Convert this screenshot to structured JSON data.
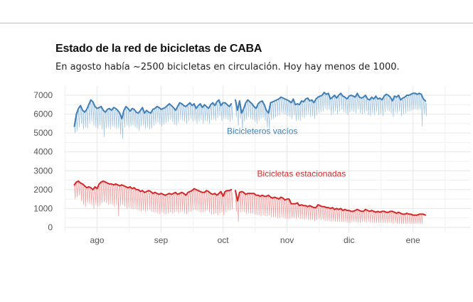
{
  "header": {
    "title": "Estado de la red de bicicletas de CABA",
    "subtitle": "En agosto había ~2500 bicicletas en circulación. Hoy hay menos de 1000."
  },
  "colors": {
    "empty_docks": "#3f7fb8",
    "empty_docks_light": "#9cc0e0",
    "parked_bikes": "#d62728",
    "parked_bikes_light": "#ee9b9b",
    "grid": "#e6e6e6"
  },
  "chart_data": {
    "type": "line",
    "grid": true,
    "legend": "none",
    "ylim": [
      0,
      7000
    ],
    "yticks": [
      0,
      1000,
      2000,
      3000,
      4000,
      5000,
      6000,
      7000
    ],
    "xlim": [
      "2018-07-16",
      "2019-01-29"
    ],
    "xticks": [
      {
        "date": "2018-08-01",
        "label": "ago"
      },
      {
        "date": "2018-09-01",
        "label": "sep"
      },
      {
        "date": "2018-10-01",
        "label": "oct"
      },
      {
        "date": "2018-11-01",
        "label": "nov"
      },
      {
        "date": "2018-12-01",
        "label": "dic"
      },
      {
        "date": "2019-01-01",
        "label": "ene"
      }
    ],
    "gaps": [
      {
        "start": "2018-10-05",
        "end": "2018-10-07"
      },
      {
        "start": "2018-11-14",
        "end": "2018-11-15"
      }
    ],
    "annotations": [
      {
        "text": "Bicicleteros vacíos",
        "series": "empty_docks",
        "date": "2018-10-20",
        "value": 4950
      },
      {
        "text": "Bicicletas estacionadas",
        "series": "parked_bikes",
        "date": "2018-11-08",
        "value": 2700
      }
    ],
    "series": [
      {
        "key": "empty_docks",
        "date_start": "2018-07-21",
        "daily_max": [
          5350,
          6000,
          6300,
          6450,
          6200,
          6100,
          6250,
          6500,
          6750,
          6650,
          6400,
          6300,
          6350,
          6400,
          6200,
          6100,
          6250,
          6300,
          6200,
          6350,
          6300,
          6200,
          6050,
          5750,
          6200,
          6400,
          6300,
          6150,
          6300,
          6250,
          6100,
          6050,
          6200,
          6350,
          6050,
          6200,
          6100,
          6050,
          6250,
          6300,
          6400,
          6350,
          6250,
          6300,
          6350,
          6450,
          6550,
          6450,
          6350,
          6200,
          6400,
          6600,
          6550,
          6450,
          6400,
          6500,
          6600,
          6450,
          6550,
          6300,
          6450,
          6550,
          6350,
          6500,
          6400,
          6300,
          6500,
          6600,
          6450,
          6650,
          6750,
          6450,
          6600,
          6600,
          6500,
          6400,
          6550,
          6600,
          6750,
          6200,
          6700,
          6050,
          6300,
          6600,
          6750,
          6650,
          6550,
          6400,
          6300,
          6550,
          6650,
          6700,
          6500,
          6200,
          6050,
          6600,
          6650,
          6700,
          6750,
          6800,
          6900,
          6850,
          6800,
          6750,
          6700,
          6600,
          6800,
          6500,
          6550,
          6500,
          6700,
          6650,
          6800,
          6850,
          6700,
          6750,
          6600,
          6800,
          6900,
          6950,
          7000,
          7150,
          7050,
          7100,
          6800,
          6900,
          7000,
          6850,
          7000,
          7100,
          6950,
          6900,
          6800,
          6950,
          7000,
          6950,
          6900,
          7100,
          6900,
          6850,
          6900,
          7000,
          6800,
          6750,
          6900,
          6800,
          6950,
          6800,
          6850,
          6750,
          6950,
          7050,
          7000,
          6900,
          6700,
          6950,
          6900,
          7000,
          6750,
          6850,
          6900,
          7000,
          7000,
          7050,
          7100,
          7100,
          7050,
          7100,
          7050,
          6800,
          6700
        ],
        "daily_min": [
          5000,
          5100,
          5300,
          5500,
          5200,
          5300,
          5250,
          5500,
          5600,
          5400,
          5300,
          5250,
          5400,
          5200,
          4800,
          5250,
          5300,
          5200,
          5350,
          5300,
          5200,
          5250,
          4900,
          4700,
          5300,
          5400,
          5300,
          5350,
          5400,
          5300,
          5250,
          5100,
          5350,
          5400,
          5250,
          5300,
          5200,
          5250,
          5400,
          5500,
          5550,
          5450,
          5350,
          5450,
          5550,
          5600,
          5700,
          5600,
          5450,
          5400,
          5550,
          5700,
          5650,
          5600,
          5500,
          5650,
          5750,
          5600,
          5650,
          5500,
          5600,
          5700,
          5500,
          5650,
          5600,
          5500,
          5700,
          5750,
          5650,
          5800,
          5900,
          5650,
          5750,
          5750,
          5700,
          5600,
          5700,
          5750,
          5850,
          5400,
          5750,
          5200,
          5600,
          5700,
          5850,
          5750,
          5700,
          5600,
          5500,
          5650,
          5750,
          5800,
          5650,
          5300,
          5200,
          5700,
          5750,
          5850,
          5900,
          5950,
          6050,
          6000,
          5950,
          5900,
          5850,
          5750,
          5950,
          5650,
          5700,
          5650,
          5850,
          5800,
          5950,
          6000,
          5850,
          5900,
          5750,
          5950,
          6050,
          6100,
          6150,
          6300,
          6200,
          6250,
          5950,
          6050,
          6150,
          6000,
          6150,
          6250,
          6100,
          6050,
          5950,
          6100,
          6150,
          6100,
          6050,
          6250,
          6050,
          6000,
          6050,
          6150,
          5950,
          5900,
          6050,
          5950,
          6100,
          5950,
          6000,
          5900,
          6100,
          6200,
          6150,
          6050,
          5850,
          6100,
          6050,
          6150,
          5900,
          6000,
          6050,
          6150,
          6150,
          6200,
          6250,
          6250,
          6200,
          6250,
          5350,
          6000,
          5900
        ]
      },
      {
        "key": "parked_bikes",
        "date_start": "2018-07-21",
        "daily_max": [
          2250,
          2400,
          2450,
          2350,
          2300,
          2200,
          2100,
          2150,
          2100,
          2000,
          2150,
          2050,
          2300,
          2400,
          2450,
          2400,
          2350,
          2300,
          2300,
          2250,
          2300,
          2250,
          2200,
          2250,
          2200,
          2150,
          2100,
          2150,
          2050,
          2100,
          2000,
          2000,
          1900,
          1950,
          1850,
          1900,
          1950,
          1900,
          1800,
          1850,
          1800,
          1750,
          1800,
          1750,
          1700,
          1750,
          1800,
          1750,
          1800,
          1850,
          1750,
          1800,
          1850,
          1800,
          1700,
          1850,
          1900,
          1950,
          2050,
          2000,
          1950,
          1900,
          1850,
          1850,
          1950,
          1900,
          1800,
          1750,
          1800,
          1700,
          1800,
          1900,
          1650,
          1900,
          1950,
          1950,
          2000,
          1950,
          1950,
          1400,
          1850,
          1900,
          1850,
          1750,
          1800,
          1800,
          1800,
          1800,
          1700,
          1700,
          1650,
          1700,
          1650,
          1650,
          1700,
          1600,
          1550,
          1600,
          1550,
          1500,
          1600,
          1550,
          1450,
          1500,
          1500,
          1250,
          1250,
          1250,
          1300,
          1150,
          1200,
          1150,
          1150,
          1100,
          1150,
          1100,
          1050,
          1050,
          1200,
          1150,
          1100,
          1100,
          1050,
          1050,
          1000,
          1050,
          950,
          1000,
          950,
          1000,
          900,
          950,
          900,
          900,
          850,
          850,
          900,
          950,
          900,
          850,
          850,
          950,
          900,
          850,
          900,
          850,
          800,
          850,
          800,
          850,
          850,
          800,
          800,
          850,
          850,
          800,
          750,
          800,
          750,
          700,
          700,
          750,
          700,
          700,
          650,
          650,
          650,
          700,
          700,
          700,
          650
        ],
        "daily_min": [
          1500,
          1600,
          1700,
          1400,
          1200,
          1100,
          1300,
          1250,
          1200,
          1000,
          1200,
          1100,
          1150,
          1300,
          1350,
          1300,
          1200,
          1250,
          1200,
          1100,
          1200,
          600,
          1150,
          1200,
          1100,
          1000,
          1050,
          1000,
          950,
          1000,
          950,
          900,
          850,
          900,
          850,
          900,
          950,
          850,
          800,
          800,
          750,
          700,
          800,
          750,
          700,
          750,
          800,
          750,
          800,
          850,
          750,
          800,
          850,
          750,
          700,
          800,
          850,
          900,
          950,
          900,
          850,
          800,
          800,
          850,
          900,
          800,
          700,
          700,
          750,
          650,
          750,
          800,
          650,
          800,
          900,
          900,
          950,
          850,
          850,
          300,
          800,
          850,
          800,
          700,
          750,
          750,
          750,
          700,
          650,
          650,
          600,
          650,
          600,
          600,
          650,
          550,
          550,
          550,
          500,
          500,
          550,
          500,
          450,
          450,
          450,
          500,
          500,
          450,
          500,
          450,
          450,
          400,
          450,
          400,
          400,
          400,
          350,
          400,
          450,
          400,
          400,
          350,
          350,
          350,
          300,
          350,
          300,
          300,
          300,
          300,
          300,
          300,
          250,
          250,
          300,
          300,
          300,
          250,
          250,
          300,
          300,
          250,
          300,
          250,
          250,
          250,
          250,
          250,
          250,
          250,
          250,
          250,
          250,
          250,
          200,
          250,
          200,
          200,
          200,
          200,
          200,
          200,
          200,
          200,
          200,
          200,
          200,
          200,
          200
        ]
      }
    ]
  }
}
